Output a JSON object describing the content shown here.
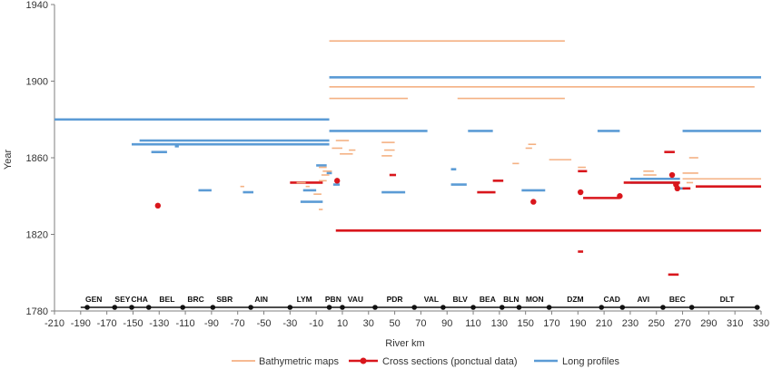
{
  "chart_data": {
    "type": "timeline",
    "xlabel": "River km",
    "ylabel": "Year",
    "xlim": [
      -210,
      330
    ],
    "ylim": [
      1780,
      1940
    ],
    "x_ticks": [
      -210,
      -190,
      -170,
      -150,
      -130,
      -110,
      -90,
      -70,
      -50,
      -30,
      -10,
      10,
      30,
      50,
      70,
      90,
      110,
      130,
      150,
      170,
      190,
      210,
      230,
      250,
      270,
      290,
      310,
      330
    ],
    "y_ticks": [
      1780,
      1820,
      1860,
      1900,
      1940
    ],
    "gridlines": false,
    "legend_position": "bottom",
    "colors": {
      "bathymetric": "#f4b183",
      "cross_section": "#d9161c",
      "long_profile": "#5b9bd5",
      "axis": "#7f7f7f"
    },
    "legend": [
      {
        "key": "bathymetric",
        "label": "Bathymetric maps"
      },
      {
        "key": "cross_section",
        "label": "Cross sections (ponctual data)"
      },
      {
        "key": "long_profile",
        "label": "Long profiles"
      }
    ],
    "sectors": [
      {
        "name": "GEN",
        "x": -180
      },
      {
        "name": "SEY",
        "x": -158
      },
      {
        "name": "CHA",
        "x": -145
      },
      {
        "name": "BEL",
        "x": -124
      },
      {
        "name": "BRC",
        "x": -102
      },
      {
        "name": "SBR",
        "x": -80
      },
      {
        "name": "AIN",
        "x": -52
      },
      {
        "name": "LYM",
        "x": -19
      },
      {
        "name": "PBN",
        "x": 3
      },
      {
        "name": "VAU",
        "x": 20
      },
      {
        "name": "PDR",
        "x": 50
      },
      {
        "name": "VAL",
        "x": 78
      },
      {
        "name": "BLV",
        "x": 100
      },
      {
        "name": "BEA",
        "x": 121
      },
      {
        "name": "BLN",
        "x": 139
      },
      {
        "name": "MON",
        "x": 157
      },
      {
        "name": "DZM",
        "x": 188
      },
      {
        "name": "CAD",
        "x": 216
      },
      {
        "name": "AVI",
        "x": 240
      },
      {
        "name": "BEC",
        "x": 266
      },
      {
        "name": "DLT",
        "x": 304
      }
    ],
    "sector_boundaries": [
      -185,
      -164,
      -151,
      -138,
      -112,
      -89,
      -60,
      -30,
      0,
      10,
      35,
      65,
      87,
      110,
      132,
      145,
      168,
      208,
      224,
      255,
      277,
      327
    ],
    "series": [
      {
        "key": "long_profile",
        "segments": [
          {
            "x": [
              0,
              330
            ],
            "y": 1902
          },
          {
            "x": [
              -210,
              0
            ],
            "y": 1880
          },
          {
            "x": [
              0,
              75
            ],
            "y": 1874
          },
          {
            "x": [
              106,
              125
            ],
            "y": 1874
          },
          {
            "x": [
              205,
              222
            ],
            "y": 1874
          },
          {
            "x": [
              270,
              330
            ],
            "y": 1874
          },
          {
            "x": [
              -145,
              0
            ],
            "y": 1869
          },
          {
            "x": [
              -151,
              0
            ],
            "y": 1867
          },
          {
            "x": [
              -118,
              -115
            ],
            "y": 1866
          },
          {
            "x": [
              -136,
              -124
            ],
            "y": 1863
          },
          {
            "x": [
              -10,
              -2
            ],
            "y": 1856
          },
          {
            "x": [
              93,
              97
            ],
            "y": 1854
          },
          {
            "x": [
              -2,
              2
            ],
            "y": 1852
          },
          {
            "x": [
              230,
              268
            ],
            "y": 1849
          },
          {
            "x": [
              230,
              268
            ],
            "y": 1847
          },
          {
            "x": [
              3,
              8
            ],
            "y": 1846
          },
          {
            "x": [
              93,
              105
            ],
            "y": 1846
          },
          {
            "x": [
              264,
              272
            ],
            "y": 1844
          },
          {
            "x": [
              -100,
              -90
            ],
            "y": 1843
          },
          {
            "x": [
              -20,
              -10
            ],
            "y": 1843
          },
          {
            "x": [
              147,
              165
            ],
            "y": 1843
          },
          {
            "x": [
              -66,
              -58
            ],
            "y": 1842
          },
          {
            "x": [
              40,
              58
            ],
            "y": 1842
          },
          {
            "x": [
              -22,
              -5
            ],
            "y": 1837
          }
        ]
      },
      {
        "key": "cross_section",
        "segments": [
          {
            "x": [
              5,
              330
            ],
            "y": 1822
          },
          {
            "x": [
              -30,
              -5
            ],
            "y": 1847
          },
          {
            "x": [
              225,
              268
            ],
            "y": 1847
          },
          {
            "x": [
              280,
              330
            ],
            "y": 1845
          },
          {
            "x": [
              113,
              127
            ],
            "y": 1842
          },
          {
            "x": [
              194,
              222
            ],
            "y": 1839
          },
          {
            "x": [
              256,
              264
            ],
            "y": 1863
          },
          {
            "x": [
              46,
              51
            ],
            "y": 1851
          },
          {
            "x": [
              190,
              197
            ],
            "y": 1853
          },
          {
            "x": [
              125,
              133
            ],
            "y": 1848
          },
          {
            "x": [
              270,
              276
            ],
            "y": 1844
          },
          {
            "x": [
              259,
              267
            ],
            "y": 1799
          },
          {
            "x": [
              190,
              194
            ],
            "y": 1811
          }
        ],
        "points": [
          {
            "x": -131,
            "y": 1835
          },
          {
            "x": 6,
            "y": 1848
          },
          {
            "x": 156,
            "y": 1837
          },
          {
            "x": 192,
            "y": 1842
          },
          {
            "x": 222,
            "y": 1840
          },
          {
            "x": 262,
            "y": 1851
          },
          {
            "x": 265,
            "y": 1846
          },
          {
            "x": 266,
            "y": 1844
          }
        ]
      },
      {
        "key": "bathymetric",
        "segments": [
          {
            "x": [
              0,
              180
            ],
            "y": 1921
          },
          {
            "x": [
              0,
              325
            ],
            "y": 1897
          },
          {
            "x": [
              0,
              60
            ],
            "y": 1891
          },
          {
            "x": [
              98,
              180
            ],
            "y": 1891
          },
          {
            "x": [
              5,
              15
            ],
            "y": 1869
          },
          {
            "x": [
              40,
              50
            ],
            "y": 1868
          },
          {
            "x": [
              2,
              10
            ],
            "y": 1865
          },
          {
            "x": [
              15,
              20
            ],
            "y": 1864
          },
          {
            "x": [
              42,
              50
            ],
            "y": 1864
          },
          {
            "x": [
              8,
              18
            ],
            "y": 1862
          },
          {
            "x": [
              40,
              48
            ],
            "y": 1861
          },
          {
            "x": [
              168,
              185
            ],
            "y": 1859
          },
          {
            "x": [
              275,
              282
            ],
            "y": 1860
          },
          {
            "x": [
              140,
              145
            ],
            "y": 1857
          },
          {
            "x": [
              -8,
              -2
            ],
            "y": 1855
          },
          {
            "x": [
              -5,
              2
            ],
            "y": 1853
          },
          {
            "x": [
              240,
              248
            ],
            "y": 1853
          },
          {
            "x": [
              270,
              282
            ],
            "y": 1852
          },
          {
            "x": [
              -6,
              0
            ],
            "y": 1851
          },
          {
            "x": [
              240,
              250
            ],
            "y": 1851
          },
          {
            "x": [
              270,
              330
            ],
            "y": 1849
          },
          {
            "x": [
              -25,
              -18
            ],
            "y": 1847
          },
          {
            "x": [
              -8,
              -2
            ],
            "y": 1848
          },
          {
            "x": [
              -68,
              -65
            ],
            "y": 1845
          },
          {
            "x": [
              -18,
              -15
            ],
            "y": 1845
          },
          {
            "x": [
              -12,
              -6
            ],
            "y": 1841
          },
          {
            "x": [
              -8,
              -5
            ],
            "y": 1833
          },
          {
            "x": [
              273,
              278
            ],
            "y": 1847
          },
          {
            "x": [
              150,
              155
            ],
            "y": 1865
          },
          {
            "x": [
              152,
              158
            ],
            "y": 1867
          },
          {
            "x": [
              190,
              196
            ],
            "y": 1855
          }
        ]
      }
    ]
  }
}
